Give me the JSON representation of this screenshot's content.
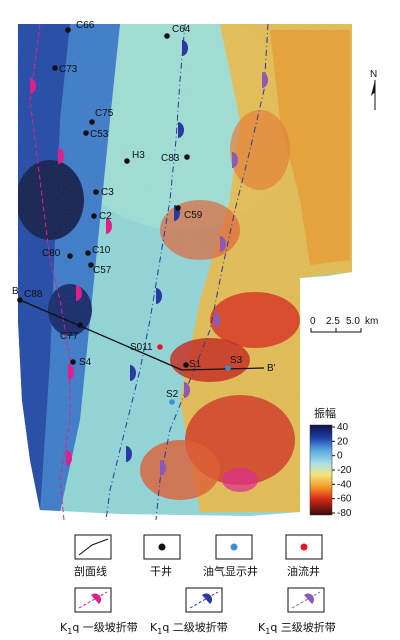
{
  "north_label": "N",
  "scale": {
    "tick_0": "0",
    "tick_1": "2.5",
    "tick_2": "5.0",
    "unit": "km"
  },
  "profile": {
    "start_label": "B",
    "end_label": "B'"
  },
  "wells": [
    {
      "name": "C66",
      "type": "dry"
    },
    {
      "name": "C64",
      "type": "dry"
    },
    {
      "name": "C73",
      "type": "dry"
    },
    {
      "name": "C75",
      "type": "dry"
    },
    {
      "name": "C53",
      "type": "dry"
    },
    {
      "name": "H3",
      "type": "dry"
    },
    {
      "name": "C83",
      "type": "dry"
    },
    {
      "name": "C3",
      "type": "dry"
    },
    {
      "name": "C2",
      "type": "dry"
    },
    {
      "name": "C59",
      "type": "dry"
    },
    {
      "name": "C80",
      "type": "dry"
    },
    {
      "name": "C10",
      "type": "dry"
    },
    {
      "name": "C57",
      "type": "dry"
    },
    {
      "name": "C88",
      "type": "dry"
    },
    {
      "name": "C77",
      "type": "dry"
    },
    {
      "name": "S4",
      "type": "dry"
    },
    {
      "name": "S011",
      "type": "oil_flow"
    },
    {
      "name": "S1",
      "type": "dry"
    },
    {
      "name": "S3",
      "type": "oil_show"
    },
    {
      "name": "S2",
      "type": "oil_show"
    }
  ],
  "colorbar": {
    "title": "振幅",
    "ticks": [
      "40",
      "20",
      "0",
      "-20",
      "-40",
      "-60",
      "-80"
    ]
  },
  "legend": {
    "profile_line": "剖面线",
    "dry_well": "干井",
    "oil_show_well": "油气显示井",
    "oil_flow_well": "油流井",
    "zone_1_prefix": "K",
    "zone_1_sub": "1",
    "zone_1_suffix": "q 一级坡折带",
    "zone_2_prefix": "K",
    "zone_2_sub": "1",
    "zone_2_suffix": "q 二级坡折带",
    "zone_3_prefix": "K",
    "zone_3_sub": "1",
    "zone_3_suffix": "q 三级坡折带"
  },
  "colors": {
    "dry": "#111111",
    "oil_show": "#3a8fdc",
    "oil_flow": "#e8141e",
    "zone_1": "#e0208a",
    "zone_2": "#2a3aa0",
    "zone_3": "#8a5ab8"
  },
  "icons": [
    "north-arrow-icon",
    "slope-break-marker-icon",
    "dry-well-dot-icon",
    "oil-show-dot-icon",
    "oil-flow-dot-icon"
  ]
}
